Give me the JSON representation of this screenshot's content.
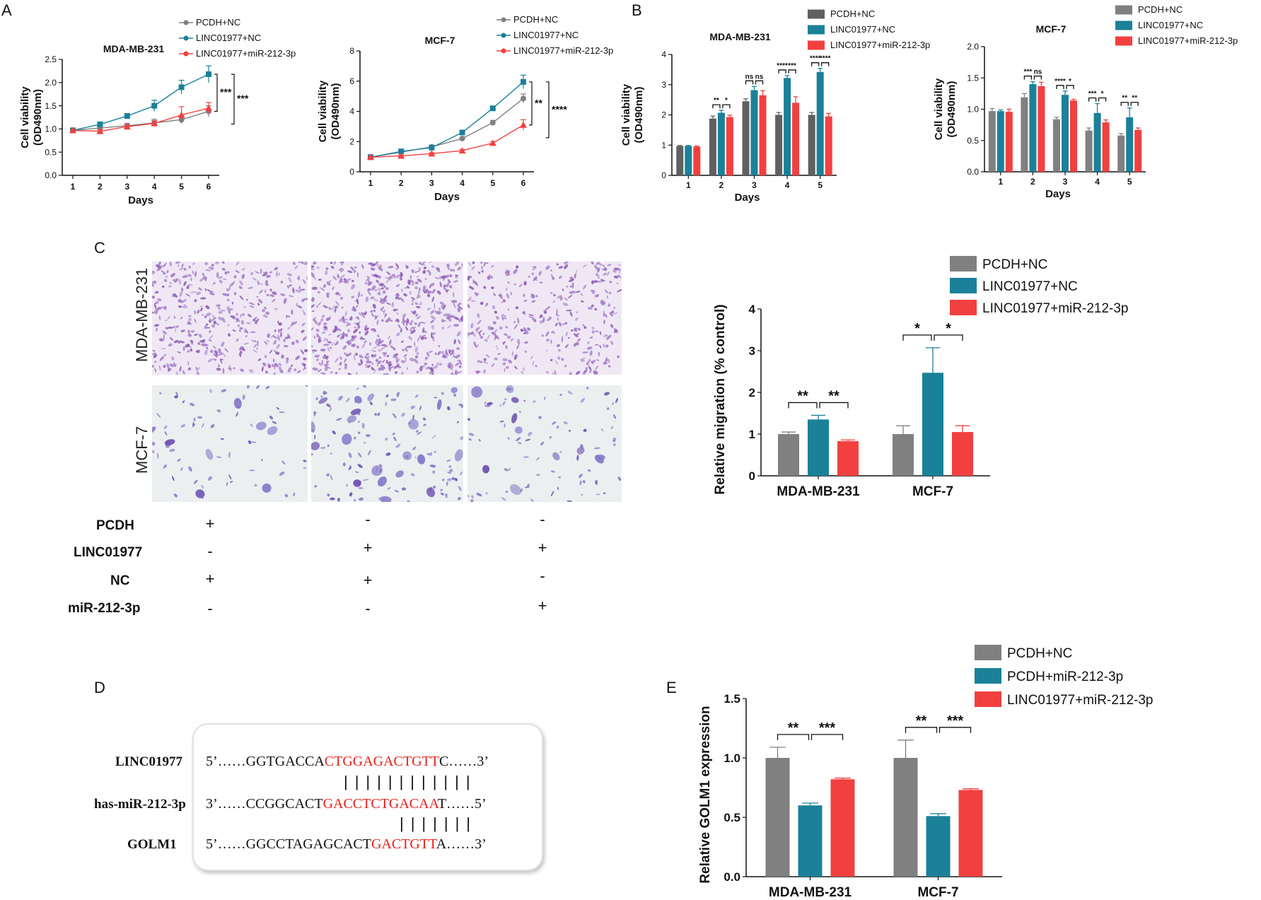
{
  "panels": {
    "a": "A",
    "b": "B",
    "c": "C",
    "d": "D",
    "e": "E"
  },
  "colors": {
    "pcdh": "#808080",
    "linc": "#1a8199",
    "mir": "#f24040",
    "grey_dark": "#606060"
  },
  "chart_data": [
    {
      "id": "A1",
      "type": "line",
      "title": "MDA-MB-231",
      "xlabel": "Days",
      "ylabel": "Cell viability\n(OD490nm)",
      "x": [
        1,
        2,
        3,
        4,
        5,
        6
      ],
      "xticks": [
        "1",
        "2",
        "3",
        "4",
        "5",
        "6"
      ],
      "ylim": [
        0,
        2.5
      ],
      "yticks": [
        "0.0",
        "0.5",
        "1.0",
        "1.5",
        "2.0",
        "2.5"
      ],
      "ytick_values": [
        0,
        0.5,
        1.0,
        1.5,
        2.0,
        2.5
      ],
      "series": [
        {
          "name": "PCDH+NC",
          "values": [
            0.97,
            1.02,
            1.07,
            1.13,
            1.2,
            1.38
          ],
          "errors": [
            0.02,
            0.03,
            0.05,
            0.08,
            0.08,
            0.12
          ]
        },
        {
          "name": "LINC01977+NC",
          "values": [
            0.97,
            1.1,
            1.28,
            1.5,
            1.9,
            2.18
          ],
          "errors": [
            0.02,
            0.04,
            0.03,
            0.12,
            0.15,
            0.18
          ]
        },
        {
          "name": "LINC01977+miR-212-3p",
          "values": [
            0.97,
            0.95,
            1.05,
            1.12,
            1.3,
            1.45
          ],
          "errors": [
            0.02,
            0.03,
            0.04,
            0.06,
            0.18,
            0.12
          ]
        }
      ],
      "significance": [
        "***",
        "***"
      ]
    },
    {
      "id": "A2",
      "type": "line",
      "title": "MCF-7",
      "xlabel": "Days",
      "ylabel": "Cell viability\n(OD490nm)",
      "x": [
        1,
        2,
        3,
        4,
        5,
        6
      ],
      "xticks": [
        "1",
        "2",
        "3",
        "4",
        "5",
        "6"
      ],
      "ylim": [
        0,
        8
      ],
      "yticks": [
        "0",
        "2",
        "4",
        "6",
        "8"
      ],
      "ytick_values": [
        0,
        2,
        4,
        6,
        8
      ],
      "series": [
        {
          "name": "PCDH+NC",
          "values": [
            0.97,
            1.3,
            1.65,
            2.2,
            3.25,
            4.85
          ],
          "errors": [
            0.05,
            0.08,
            0.1,
            0.1,
            0.15,
            0.3
          ]
        },
        {
          "name": "LINC01977+NC",
          "values": [
            0.97,
            1.35,
            1.6,
            2.6,
            4.2,
            5.95
          ],
          "errors": [
            0.05,
            0.08,
            0.1,
            0.12,
            0.15,
            0.45
          ]
        },
        {
          "name": "LINC01977+miR-212-3p",
          "values": [
            0.97,
            1.05,
            1.2,
            1.4,
            1.9,
            3.1
          ],
          "errors": [
            0.05,
            0.05,
            0.06,
            0.08,
            0.1,
            0.35
          ]
        }
      ],
      "significance": [
        "**",
        "****"
      ]
    },
    {
      "id": "B1",
      "type": "bar",
      "title": "MDA-MB-231",
      "xlabel": "Days",
      "ylabel": "Cell viability\n(OD490nm)",
      "categories": [
        "1",
        "2",
        "3",
        "4",
        "5"
      ],
      "ylim": [
        0,
        4
      ],
      "yticks": [
        "0",
        "1",
        "2",
        "3",
        "4"
      ],
      "ytick_values": [
        0,
        1,
        2,
        3,
        4
      ],
      "series": [
        {
          "name": "PCDH+NC",
          "values": [
            0.97,
            1.88,
            2.45,
            2.0,
            2.0
          ],
          "errors": [
            0.02,
            0.08,
            0.08,
            0.08,
            0.08
          ]
        },
        {
          "name": "LINC01977+NC",
          "values": [
            0.97,
            2.07,
            2.82,
            3.22,
            3.42
          ],
          "errors": [
            0.02,
            0.08,
            0.12,
            0.08,
            0.12
          ]
        },
        {
          "name": "LINC01977+miR-212-3p",
          "values": [
            0.95,
            1.93,
            2.65,
            2.4,
            1.95
          ],
          "errors": [
            0.02,
            0.06,
            0.15,
            0.2,
            0.1
          ]
        }
      ],
      "significance": [
        [
          "",
          ""
        ],
        [
          "**",
          "*"
        ],
        [
          "ns",
          "ns"
        ],
        [
          "****",
          "***"
        ],
        [
          "****",
          "****"
        ]
      ]
    },
    {
      "id": "B2",
      "type": "bar",
      "title": "MCF-7",
      "xlabel": "Days",
      "ylabel": "Cell viability\n(OD490nm)",
      "categories": [
        "1",
        "2",
        "3",
        "4",
        "5"
      ],
      "ylim": [
        0,
        2.0
      ],
      "yticks": [
        "0.0",
        "0.5",
        "1.0",
        "1.5",
        "2.0"
      ],
      "ytick_values": [
        0,
        0.5,
        1.0,
        1.5,
        2.0
      ],
      "series": [
        {
          "name": "PCDH+NC",
          "values": [
            0.97,
            1.19,
            0.84,
            0.66,
            0.58
          ],
          "errors": [
            0.04,
            0.06,
            0.03,
            0.04,
            0.03
          ]
        },
        {
          "name": "LINC01977+NC",
          "values": [
            0.97,
            1.4,
            1.23,
            0.94,
            0.87
          ],
          "errors": [
            0.02,
            0.04,
            0.06,
            0.15,
            0.15
          ]
        },
        {
          "name": "LINC01977+miR-212-3p",
          "values": [
            0.96,
            1.37,
            1.14,
            0.79,
            0.67
          ],
          "errors": [
            0.04,
            0.06,
            0.02,
            0.04,
            0.03
          ]
        }
      ],
      "significance": [
        [
          "",
          ""
        ],
        [
          "***",
          "ns"
        ],
        [
          "****",
          "*"
        ],
        [
          "***",
          "*"
        ],
        [
          "**",
          "**"
        ]
      ]
    },
    {
      "id": "C",
      "type": "bar",
      "xlabel": "",
      "ylabel": "Relative migration (% control)",
      "categories": [
        "MDA-MB-231",
        "MCF-7"
      ],
      "ylim": [
        0,
        4
      ],
      "yticks": [
        "0",
        "1",
        "2",
        "3",
        "4"
      ],
      "ytick_values": [
        0,
        1,
        2,
        3,
        4
      ],
      "series": [
        {
          "name": "PCDH+NC",
          "values": [
            1.0,
            1.0
          ],
          "errors": [
            0.05,
            0.2
          ]
        },
        {
          "name": "LINC01977+NC",
          "values": [
            1.35,
            2.47
          ],
          "errors": [
            0.1,
            0.6
          ]
        },
        {
          "name": "LINC01977+miR-212-3p",
          "values": [
            0.83,
            1.05
          ],
          "errors": [
            0.03,
            0.15
          ]
        }
      ],
      "significance": [
        [
          "**",
          "**"
        ],
        [
          "*",
          "*"
        ]
      ]
    },
    {
      "id": "E",
      "type": "bar",
      "xlabel": "",
      "ylabel": "Relative GOLM1 expression",
      "categories": [
        "MDA-MB-231",
        "MCF-7"
      ],
      "ylim": [
        0,
        1.5
      ],
      "yticks": [
        "0.0",
        "0.5",
        "1.0",
        "1.5"
      ],
      "ytick_values": [
        0,
        0.5,
        1.0,
        1.5
      ],
      "series": [
        {
          "name": "PCDH+NC",
          "values": [
            1.0,
            1.0
          ],
          "errors": [
            0.09,
            0.15
          ]
        },
        {
          "name": "PCDH+miR-212-3p",
          "values": [
            0.6,
            0.51
          ],
          "errors": [
            0.02,
            0.02
          ]
        },
        {
          "name": "LINC01977+miR-212-3p",
          "values": [
            0.82,
            0.73
          ],
          "errors": [
            0.01,
            0.01
          ]
        }
      ],
      "significance": [
        [
          "**",
          "***"
        ],
        [
          "**",
          "***"
        ]
      ]
    }
  ],
  "micrograph": {
    "rows": [
      "MDA-MB-231",
      "MCF-7"
    ],
    "table": [
      {
        "label": "PCDH",
        "signs": [
          "+",
          "-",
          "-"
        ]
      },
      {
        "label": "LINC01977",
        "signs": [
          "-",
          "+",
          "+"
        ]
      },
      {
        "label": "NC",
        "signs": [
          "+",
          "+",
          "-"
        ]
      },
      {
        "label": "miR-212-3p",
        "signs": [
          "-",
          "-",
          "+"
        ]
      }
    ]
  },
  "sequences": [
    {
      "name": "LINC01977",
      "pre": "5’……GGTGACCA",
      "red": "CTGGAGACTGTT",
      "post": "C……3’"
    },
    {
      "name": "has-miR-212-3p",
      "pre": "3’……CCGGCACT",
      "red": "GACCTCTGACAA",
      "post": "T……5’"
    },
    {
      "name": "GOLM1",
      "pre": "5’……GGCCTAGAGCACT",
      "red": "GACTGTT",
      "post": "A……3’"
    }
  ],
  "pairs": {
    "top": "||||||||||||",
    "bottom": "|||||||"
  }
}
